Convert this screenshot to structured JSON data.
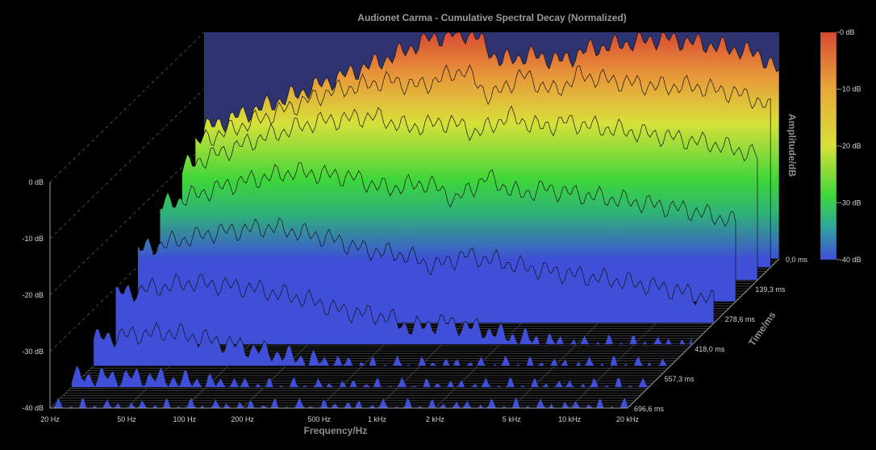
{
  "chart_data": {
    "type": "waterfall-3d",
    "title": "Audionet Carma - Cumulative Spectral Decay (Normalized)",
    "xlabel": "Frequency/Hz",
    "ylabel": "Amplitude/dB",
    "zlabel": "Time/ms",
    "x_scale": "log",
    "xlim": [
      20,
      20000
    ],
    "ylim": [
      -40,
      0
    ],
    "zlim": [
      0,
      696.6
    ],
    "x_ticks": [
      "20 Hz",
      "50 Hz",
      "100 Hz",
      "200 Hz",
      "500 Hz",
      "1 kHz",
      "2 kHz",
      "5 kHz",
      "10 kHz",
      "20 kHz"
    ],
    "x_tick_values": [
      20,
      50,
      100,
      200,
      500,
      1000,
      2000,
      5000,
      10000,
      20000
    ],
    "y_ticks": [
      "0 dB",
      "-10 dB",
      "-20 dB",
      "-30 dB",
      "-40 dB"
    ],
    "y_tick_values": [
      0,
      -10,
      -20,
      -30,
      -40
    ],
    "z_ticks": [
      "0,0 ms",
      "139,3 ms",
      "278,6 ms",
      "418,0 ms",
      "557,3 ms",
      "696,6 ms"
    ],
    "z_tick_values": [
      0,
      139.3,
      278.6,
      418.0,
      557.3,
      696.6
    ],
    "colorbar": {
      "labels": [
        "0 dB",
        "-10 dB",
        "-20 dB",
        "-30 dB",
        "-40 dB"
      ],
      "values": [
        0,
        -10,
        -20,
        -30,
        -40
      ],
      "colors": [
        "#d84a34",
        "#e8a83a",
        "#d8e03a",
        "#3ed63a",
        "#3f4fd8"
      ]
    },
    "series": [
      {
        "time_ms": 0,
        "x": [
          20,
          50,
          100,
          200,
          300,
          500,
          700,
          1000,
          1500,
          2000,
          3000,
          5000,
          8000,
          12000,
          16000,
          20000
        ],
        "values": [
          -17,
          -12,
          -8,
          -4,
          -1,
          0,
          -5,
          -4,
          -5,
          -3,
          -2,
          -1,
          -2,
          -3,
          -4,
          -7
        ]
      },
      {
        "time_ms": 40,
        "x": [
          20,
          50,
          100,
          200,
          300,
          500,
          700,
          1000,
          1500,
          2000,
          3000,
          5000,
          8000,
          12000,
          16000,
          20000
        ],
        "values": [
          -18,
          -13,
          -9,
          -7,
          -8,
          -5,
          -10,
          -6,
          -9,
          -6,
          -7,
          -8,
          -8,
          -9,
          -10,
          -12
        ]
      },
      {
        "time_ms": 100,
        "x": [
          20,
          50,
          100,
          200,
          300,
          500,
          700,
          1000,
          1500,
          2000,
          3000,
          5000,
          8000,
          12000,
          16000,
          20000
        ],
        "values": [
          -20,
          -15,
          -12,
          -11,
          -13,
          -12,
          -14,
          -11,
          -13,
          -12,
          -13,
          -14,
          -15,
          -16,
          -17,
          -18
        ]
      },
      {
        "time_ms": 200,
        "x": [
          20,
          50,
          100,
          200,
          300,
          500,
          700,
          1000,
          1500,
          2000,
          3000,
          5000,
          8000,
          12000,
          16000,
          20000
        ],
        "values": [
          -23,
          -19,
          -17,
          -18,
          -20,
          -19,
          -22,
          -18,
          -21,
          -20,
          -21,
          -22,
          -23,
          -24,
          -25,
          -26
        ]
      },
      {
        "time_ms": 300,
        "x": [
          20,
          50,
          100,
          200,
          300,
          500,
          700,
          1000,
          1500,
          2000,
          3000,
          5000,
          8000,
          12000,
          16000,
          20000
        ],
        "values": [
          -27,
          -24,
          -23,
          -25,
          -27,
          -28,
          -30,
          -28,
          -29,
          -30,
          -31,
          -32,
          -33,
          -34,
          -35,
          -36
        ]
      },
      {
        "time_ms": 400,
        "x": [
          20,
          50,
          100,
          200,
          300,
          500,
          700,
          1000,
          1500,
          2000,
          3000,
          5000,
          8000,
          12000,
          16000,
          20000
        ],
        "values": [
          -31,
          -29,
          -30,
          -32,
          -34,
          -35,
          -37,
          -36,
          -37,
          -38,
          -39,
          -40,
          -40,
          -40,
          -40,
          -40
        ]
      },
      {
        "time_ms": 500,
        "x": [
          20,
          50,
          100,
          200,
          300,
          500,
          700,
          1000,
          1500,
          2000,
          3000,
          5000,
          8000,
          12000,
          16000,
          20000
        ],
        "values": [
          -35,
          -34,
          -36,
          -38,
          -39,
          -40,
          -40,
          -40,
          -40,
          -40,
          -40,
          -40,
          -40,
          -40,
          -40,
          -40
        ]
      },
      {
        "time_ms": 600,
        "x": [
          20,
          50,
          100,
          200,
          300,
          500,
          700,
          1000,
          1500,
          2000,
          3000,
          5000,
          8000,
          12000,
          16000,
          20000
        ],
        "values": [
          -38,
          -38,
          -39,
          -40,
          -40,
          -40,
          -40,
          -40,
          -40,
          -40,
          -40,
          -40,
          -40,
          -40,
          -40,
          -40
        ]
      },
      {
        "time_ms": 696.6,
        "x": [
          20,
          50,
          100,
          200,
          300,
          500,
          700,
          1000,
          1500,
          2000,
          3000,
          5000,
          8000,
          12000,
          16000,
          20000
        ],
        "values": [
          -40,
          -40,
          -40,
          -40,
          -40,
          -40,
          -40,
          -40,
          -40,
          -40,
          -40,
          -40,
          -40,
          -40,
          -40,
          -40
        ]
      }
    ]
  }
}
